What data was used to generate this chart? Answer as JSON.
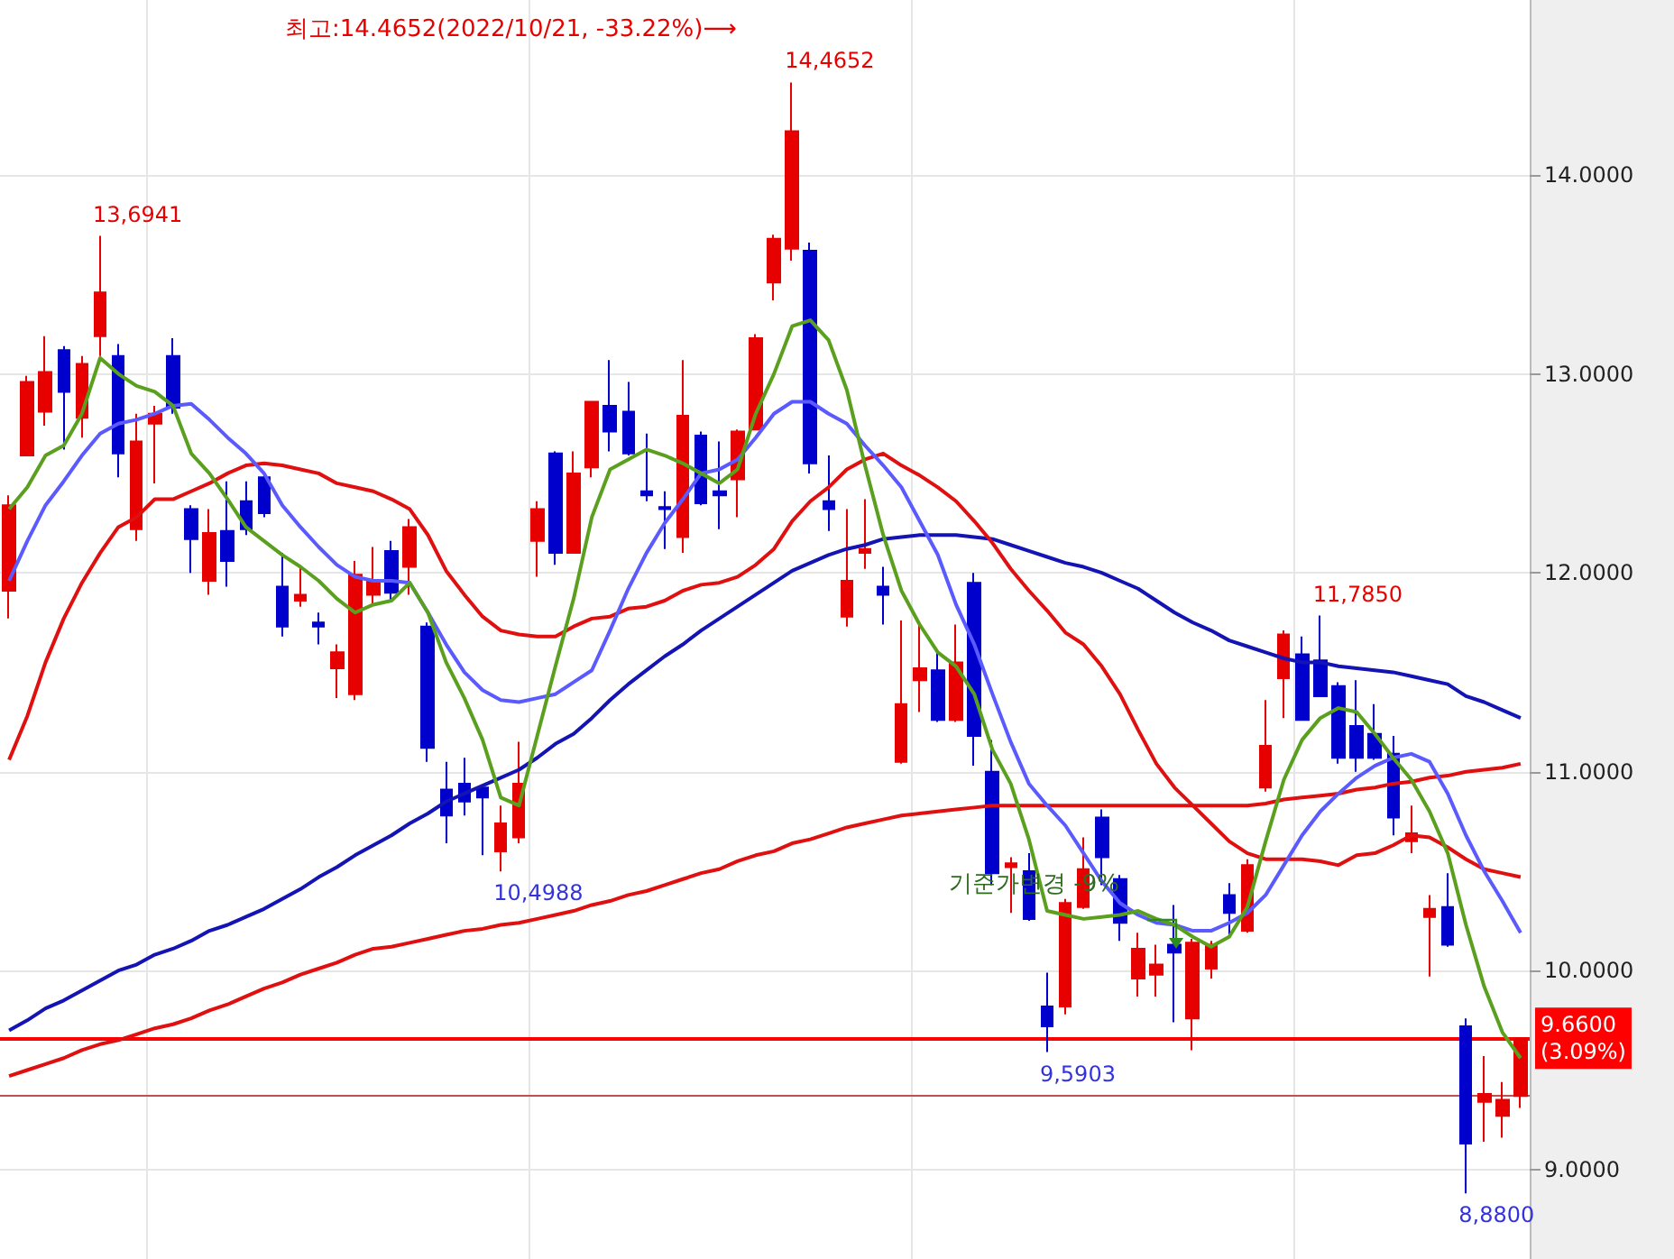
{
  "chart_data": {
    "type": "candlestick",
    "categories": [
      null,
      null,
      null,
      null,
      null,
      null,
      null,
      null,
      null,
      null,
      null,
      null,
      null,
      null,
      null,
      null,
      null,
      null,
      null,
      null,
      null,
      null,
      null,
      null,
      null,
      null,
      null,
      null,
      null,
      null,
      null,
      null,
      null,
      null,
      null,
      null,
      null,
      null,
      null,
      null,
      null,
      null,
      null,
      null,
      null,
      null,
      null,
      null,
      null,
      null,
      null,
      null,
      null,
      null,
      null,
      null,
      null,
      null,
      null,
      null,
      null,
      null,
      null,
      null,
      null,
      null,
      null,
      null,
      null,
      null,
      null,
      null,
      null,
      null,
      null,
      null,
      null,
      null,
      null,
      null,
      null,
      null,
      null,
      null
    ],
    "ohlc": [
      [
        11.91,
        12.39,
        11.77,
        12.34
      ],
      [
        12.59,
        12.99,
        12.59,
        12.96
      ],
      [
        12.81,
        13.19,
        12.74,
        13.01
      ],
      [
        13.12,
        13.14,
        12.62,
        12.91
      ],
      [
        12.78,
        13.09,
        12.68,
        13.05
      ],
      [
        13.19,
        13.6941,
        13.09,
        13.41
      ],
      [
        13.09,
        13.15,
        12.48,
        12.6
      ],
      [
        12.22,
        12.8,
        12.16,
        12.66
      ],
      [
        12.75,
        12.84,
        12.45,
        12.8
      ],
      [
        13.09,
        13.18,
        12.8,
        12.83
      ],
      [
        12.32,
        12.34,
        12.0,
        12.17
      ],
      [
        11.96,
        12.32,
        11.89,
        12.2
      ],
      [
        12.21,
        12.46,
        11.93,
        12.06
      ],
      [
        12.36,
        12.46,
        12.19,
        12.22
      ],
      [
        12.48,
        12.5,
        12.28,
        12.3
      ],
      [
        11.93,
        12.1,
        11.68,
        11.73
      ],
      [
        11.86,
        12.03,
        11.83,
        11.89
      ],
      [
        11.75,
        11.8,
        11.64,
        11.73
      ],
      [
        11.52,
        11.64,
        11.37,
        11.6
      ],
      [
        11.39,
        12.06,
        11.36,
        11.99
      ],
      [
        11.89,
        12.13,
        11.84,
        11.96
      ],
      [
        12.11,
        12.16,
        11.86,
        11.9
      ],
      [
        12.03,
        12.27,
        11.89,
        12.23
      ],
      [
        11.73,
        11.75,
        11.05,
        11.12
      ],
      [
        10.91,
        11.05,
        10.64,
        10.78
      ],
      [
        10.94,
        11.07,
        10.78,
        10.85
      ],
      [
        10.92,
        10.93,
        10.58,
        10.87
      ],
      [
        10.6,
        10.83,
        10.4988,
        10.74
      ],
      [
        10.67,
        11.15,
        10.64,
        10.94
      ],
      [
        12.16,
        12.36,
        11.98,
        12.32
      ],
      [
        12.6,
        12.61,
        12.04,
        12.1
      ],
      [
        12.1,
        12.61,
        12.1,
        12.5
      ],
      [
        12.53,
        12.86,
        12.48,
        12.86
      ],
      [
        12.84,
        13.07,
        12.61,
        12.71
      ],
      [
        12.81,
        12.96,
        12.59,
        12.6
      ],
      [
        12.41,
        12.7,
        12.36,
        12.39
      ],
      [
        12.33,
        12.41,
        12.12,
        12.32
      ],
      [
        12.18,
        13.07,
        12.1,
        12.79
      ],
      [
        12.69,
        12.71,
        12.34,
        12.35
      ],
      [
        12.41,
        12.66,
        12.22,
        12.39
      ],
      [
        12.47,
        12.72,
        12.28,
        12.71
      ],
      [
        12.72,
        13.2,
        12.72,
        13.18
      ],
      [
        13.46,
        13.7,
        13.37,
        13.68
      ],
      [
        13.63,
        14.4652,
        13.57,
        14.22
      ],
      [
        13.62,
        13.66,
        12.5,
        12.55
      ],
      [
        12.36,
        12.59,
        12.21,
        12.32
      ],
      [
        11.78,
        12.32,
        11.73,
        11.96
      ],
      [
        12.1,
        12.37,
        12.02,
        12.12
      ],
      [
        11.93,
        12.03,
        11.74,
        11.89
      ],
      [
        11.05,
        11.76,
        11.04,
        11.34
      ],
      [
        11.46,
        11.75,
        11.3,
        11.52
      ],
      [
        11.51,
        11.6,
        11.25,
        11.26
      ],
      [
        11.26,
        11.74,
        11.25,
        11.55
      ],
      [
        11.95,
        12.0,
        11.03,
        11.18
      ],
      [
        11.0,
        11.16,
        10.43,
        10.49
      ],
      [
        10.52,
        10.57,
        10.29,
        10.54
      ],
      [
        10.5,
        10.59,
        10.25,
        10.26
      ],
      [
        9.82,
        9.99,
        9.5903,
        9.72
      ],
      [
        9.82,
        10.36,
        9.78,
        10.34
      ],
      [
        10.32,
        10.67,
        10.31,
        10.51
      ],
      [
        10.77,
        10.81,
        10.43,
        10.57
      ],
      [
        10.46,
        10.48,
        10.15,
        10.24
      ],
      [
        9.96,
        10.19,
        9.87,
        10.11
      ],
      [
        9.98,
        10.13,
        9.87,
        10.03
      ],
      [
        10.13,
        10.33,
        9.74,
        10.09
      ],
      [
        9.76,
        10.16,
        9.6,
        10.14
      ],
      [
        10.01,
        10.15,
        9.96,
        10.13
      ],
      [
        10.38,
        10.44,
        10.17,
        10.29
      ],
      [
        10.2,
        10.56,
        10.19,
        10.53
      ],
      [
        10.92,
        11.36,
        10.9,
        11.13
      ],
      [
        11.47,
        11.71,
        11.27,
        11.69
      ],
      [
        11.59,
        11.68,
        11.26,
        11.26
      ],
      [
        11.56,
        11.785,
        11.38,
        11.38
      ],
      [
        11.43,
        11.45,
        11.04,
        11.07
      ],
      [
        11.23,
        11.46,
        11.0,
        11.07
      ],
      [
        11.19,
        11.34,
        11.06,
        11.07
      ],
      [
        11.09,
        11.18,
        10.68,
        10.77
      ],
      [
        10.65,
        10.83,
        10.59,
        10.69
      ],
      [
        10.27,
        10.38,
        9.97,
        10.31
      ],
      [
        10.32,
        10.49,
        10.12,
        10.13
      ],
      [
        9.72,
        9.76,
        8.88,
        9.13
      ],
      [
        9.34,
        9.57,
        9.14,
        9.38
      ],
      [
        9.27,
        9.44,
        9.16,
        9.35
      ],
      [
        9.37,
        9.66,
        9.31,
        9.66
      ]
    ],
    "colors": [
      "#e60000",
      "#e60000",
      "#e60000",
      "#0000cc",
      "#e60000",
      "#e60000",
      "#0000cc",
      "#e60000",
      "#e60000",
      "#0000cc",
      "#0000cc",
      "#e60000",
      "#0000cc",
      "#0000cc",
      "#0000cc",
      "#0000cc",
      "#e60000",
      "#0000cc",
      "#e60000",
      "#e60000",
      "#e60000",
      "#0000cc",
      "#e60000",
      "#0000cc",
      "#0000cc",
      "#0000cc",
      "#0000cc",
      "#e60000",
      "#e60000",
      "#e60000",
      "#0000cc",
      "#e60000",
      "#e60000",
      "#0000cc",
      "#0000cc",
      "#0000cc",
      "#0000cc",
      "#e60000",
      "#0000cc",
      "#0000cc",
      "#e60000",
      "#e60000",
      "#e60000",
      "#e60000",
      "#0000cc",
      "#0000cc",
      "#e60000",
      "#e60000",
      "#0000cc",
      "#e60000",
      "#e60000",
      "#0000cc",
      "#e60000",
      "#0000cc",
      "#0000cc",
      "#e60000",
      "#0000cc",
      "#0000cc",
      "#e60000",
      "#e60000",
      "#0000cc",
      "#0000cc",
      "#e60000",
      "#e60000",
      "#0000cc",
      "#e60000",
      "#e60000",
      "#0000cc",
      "#e60000",
      "#e60000",
      "#e60000",
      "#0000cc",
      "#0000cc",
      "#0000cc",
      "#0000cc",
      "#0000cc",
      "#0000cc",
      "#e60000",
      "#e60000",
      "#0000cc",
      "#0000cc",
      "#e60000",
      "#e60000",
      "#e60000"
    ],
    "series": [
      {
        "type": "line",
        "color": "#e01010",
        "values": [
          9.47,
          9.5,
          9.53,
          9.56,
          9.6,
          9.63,
          9.65,
          9.68,
          9.71,
          9.73,
          9.76,
          9.8,
          9.83,
          9.87,
          9.91,
          9.94,
          9.98,
          10.01,
          10.04,
          10.08,
          10.11,
          10.12,
          10.14,
          10.16,
          10.18,
          10.2,
          10.21,
          10.23,
          10.24,
          10.26,
          10.28,
          10.3,
          10.33,
          10.35,
          10.38,
          10.4,
          10.43,
          10.46,
          10.49,
          10.51,
          10.55,
          10.58,
          10.6,
          10.64,
          10.66,
          10.69,
          10.72,
          10.74,
          10.76,
          10.78,
          10.79,
          10.8,
          10.81,
          10.82,
          10.83,
          10.83,
          10.83,
          10.83,
          10.83,
          10.83,
          10.83,
          10.83,
          10.83,
          10.83,
          10.83,
          10.83,
          10.83,
          10.83,
          10.83,
          10.84,
          10.86,
          10.87,
          10.88,
          10.89,
          10.91,
          10.92,
          10.94,
          10.95,
          10.97,
          10.98,
          11.0,
          11.01,
          11.02,
          11.04
        ]
      },
      {
        "type": "line",
        "color": "#1414b4",
        "values": [
          9.7,
          9.75,
          9.81,
          9.85,
          9.9,
          9.95,
          10.0,
          10.03,
          10.08,
          10.11,
          10.15,
          10.2,
          10.23,
          10.27,
          10.31,
          10.36,
          10.41,
          10.47,
          10.52,
          10.58,
          10.63,
          10.68,
          10.74,
          10.79,
          10.85,
          10.89,
          10.93,
          10.97,
          11.01,
          11.07,
          11.14,
          11.19,
          11.27,
          11.36,
          11.44,
          11.51,
          11.58,
          11.64,
          11.71,
          11.77,
          11.83,
          11.89,
          11.95,
          12.01,
          12.05,
          12.09,
          12.12,
          12.14,
          12.17,
          12.18,
          12.19,
          12.19,
          12.19,
          12.18,
          12.17,
          12.14,
          12.11,
          12.08,
          12.05,
          12.03,
          12.0,
          11.96,
          11.92,
          11.86,
          11.8,
          11.75,
          11.71,
          11.66,
          11.63,
          11.6,
          11.57,
          11.55,
          11.55,
          11.53,
          11.52,
          11.51,
          11.5,
          11.48,
          11.46,
          11.44,
          11.38,
          11.35,
          11.31,
          11.27
        ]
      },
      {
        "type": "line",
        "color": "#e01010",
        "values": [
          11.06,
          11.28,
          11.55,
          11.77,
          11.95,
          12.1,
          12.23,
          12.28,
          12.37,
          12.37,
          12.41,
          12.45,
          12.5,
          12.54,
          12.55,
          12.54,
          12.52,
          12.5,
          12.45,
          12.43,
          12.41,
          12.37,
          12.32,
          12.19,
          12.01,
          11.89,
          11.78,
          11.71,
          11.69,
          11.68,
          11.68,
          11.73,
          11.77,
          11.78,
          11.82,
          11.83,
          11.86,
          11.91,
          11.94,
          11.95,
          11.98,
          12.04,
          12.12,
          12.26,
          12.36,
          12.43,
          12.52,
          12.57,
          12.6,
          12.54,
          12.49,
          12.43,
          12.36,
          12.26,
          12.15,
          12.02,
          11.91,
          11.81,
          11.7,
          11.64,
          11.53,
          11.39,
          11.21,
          11.04,
          10.92,
          10.83,
          10.74,
          10.65,
          10.59,
          10.56,
          10.56,
          10.56,
          10.55,
          10.53,
          10.58,
          10.59,
          10.63,
          10.68,
          10.67,
          10.62,
          10.56,
          10.51,
          10.49,
          10.47
        ]
      },
      {
        "type": "line",
        "color": "#5a5aff",
        "values": [
          11.96,
          12.16,
          12.34,
          12.46,
          12.59,
          12.7,
          12.75,
          12.77,
          12.8,
          12.84,
          12.85,
          12.77,
          12.68,
          12.6,
          12.5,
          12.34,
          12.23,
          12.13,
          12.04,
          11.98,
          11.96,
          11.96,
          11.95,
          11.8,
          11.64,
          11.5,
          11.41,
          11.36,
          11.35,
          11.37,
          11.39,
          11.45,
          11.51,
          11.71,
          11.92,
          12.1,
          12.25,
          12.37,
          12.5,
          12.52,
          12.57,
          12.68,
          12.8,
          12.86,
          12.86,
          12.8,
          12.75,
          12.64,
          12.54,
          12.43,
          12.26,
          12.09,
          11.84,
          11.64,
          11.39,
          11.15,
          10.94,
          10.83,
          10.73,
          10.59,
          10.45,
          10.34,
          10.28,
          10.24,
          10.23,
          10.2,
          10.2,
          10.24,
          10.29,
          10.38,
          10.53,
          10.68,
          10.8,
          10.89,
          10.97,
          11.03,
          11.07,
          11.09,
          11.05,
          10.89,
          10.68,
          10.5,
          10.35,
          10.19
        ]
      },
      {
        "type": "line",
        "color": "#5aa01e",
        "values": [
          12.32,
          12.43,
          12.59,
          12.64,
          12.8,
          13.08,
          13.0,
          12.94,
          12.91,
          12.84,
          12.6,
          12.5,
          12.37,
          12.23,
          12.16,
          12.09,
          12.03,
          11.96,
          11.87,
          11.8,
          11.84,
          11.86,
          11.95,
          11.8,
          11.55,
          11.37,
          11.16,
          10.87,
          10.83,
          11.18,
          11.53,
          11.87,
          12.28,
          12.52,
          12.57,
          12.62,
          12.59,
          12.55,
          12.5,
          12.45,
          12.52,
          12.8,
          13.0,
          13.24,
          13.27,
          13.17,
          12.92,
          12.54,
          12.19,
          11.91,
          11.74,
          11.6,
          11.53,
          11.39,
          11.11,
          10.94,
          10.66,
          10.3,
          10.28,
          10.26,
          10.27,
          10.28,
          10.3,
          10.26,
          10.23,
          10.17,
          10.12,
          10.17,
          10.32,
          10.65,
          10.96,
          11.16,
          11.27,
          11.32,
          11.3,
          11.19,
          11.07,
          10.96,
          10.8,
          10.59,
          10.23,
          9.92,
          9.69,
          9.56
        ]
      }
    ],
    "ylim": [
      8.55,
      14.88
    ],
    "yticks": [
      {
        "value": 9,
        "label": "9.0000"
      },
      {
        "value": 10,
        "label": "10.0000"
      },
      {
        "value": 11,
        "label": "11.0000"
      },
      {
        "value": 12,
        "label": "12.0000"
      },
      {
        "value": 13,
        "label": "13.0000"
      },
      {
        "value": 14,
        "label": "14.0000"
      }
    ],
    "ref_lines": [
      {
        "axis": "y",
        "value": 9.66,
        "label": "9.6600 (3.09%)",
        "color": "#ff0000"
      },
      {
        "axis": "y",
        "value": 9.37,
        "color": "#c05050"
      }
    ],
    "annotations": [
      "최고:14.4652(2022/10/21, -33.22%)⟶",
      "13,6941",
      "14,4652",
      "10,4988",
      "9,5903",
      "11,7850",
      "8,8800",
      "기준가변경 -9%"
    ],
    "grid": true,
    "marker": "none"
  }
}
